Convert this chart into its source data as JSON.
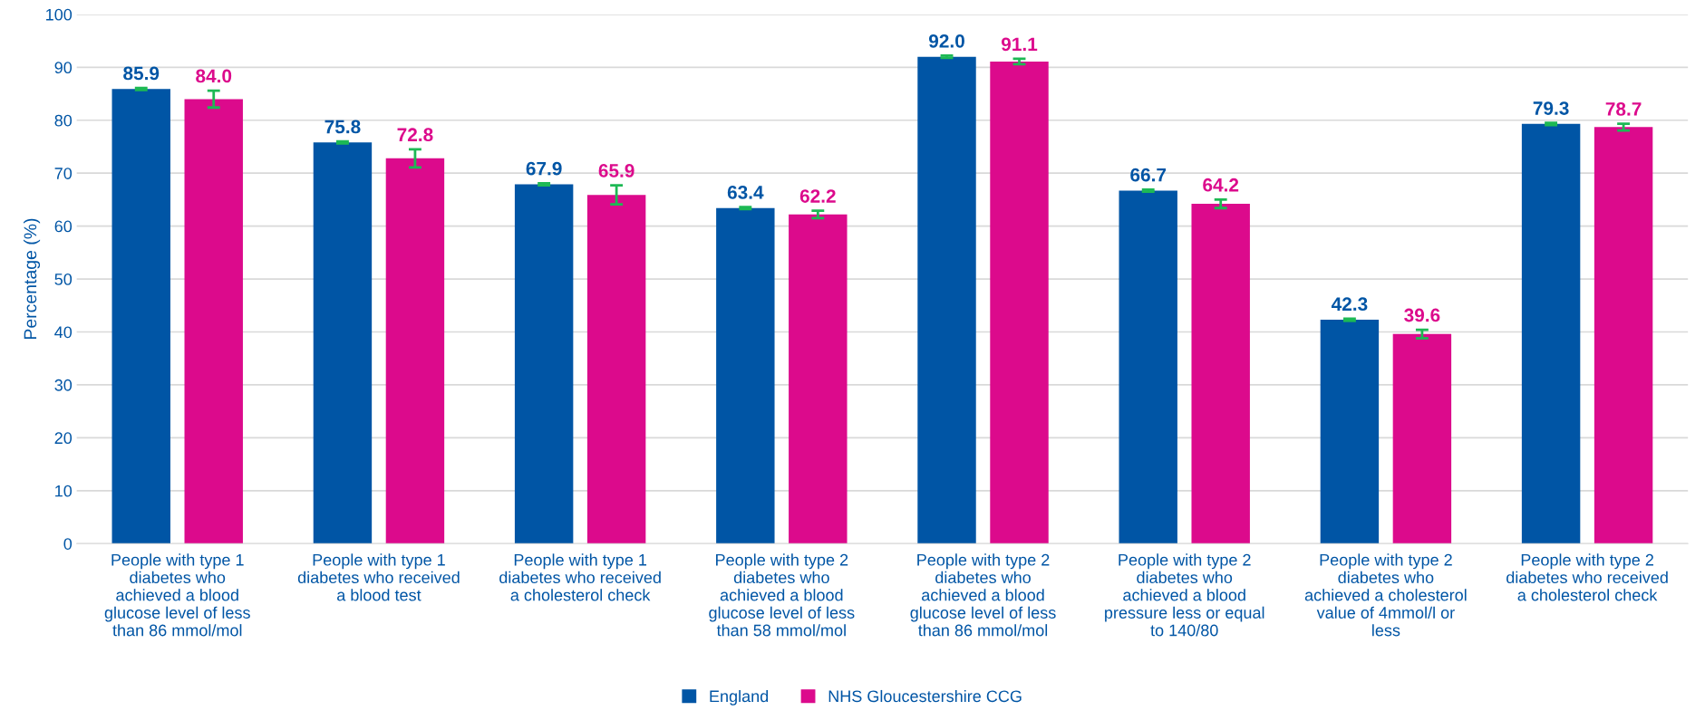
{
  "chart_data": {
    "type": "bar",
    "ylabel": "Percentage (%)",
    "categories": [
      "People with type 1\ndiabetes who\nachieved a blood\nglucose level of less\nthan 86 mmol/mol",
      "People with type 1\ndiabetes who received\na blood test",
      "People with type 1\ndiabetes who received\na cholesterol check",
      "People with type 2\ndiabetes who\nachieved a blood\nglucose level of less\nthan 58 mmol/mol",
      "People with type 2\ndiabetes who\nachieved a blood\nglucose level of less\nthan 86 mmol/mol",
      "People with type 2\ndiabetes who\nachieved a blood\npressure less or equal\nto 140/80",
      "People with type 2\ndiabetes who\nachieved a cholesterol\nvalue of 4mmol/l or\nless",
      "People with type 2\ndiabetes who received\na cholesterol check"
    ],
    "series": [
      {
        "name": "England",
        "color": "#0055a5",
        "values": [
          85.9,
          75.8,
          67.9,
          63.4,
          92.0,
          66.7,
          42.3,
          79.3
        ],
        "value_labels": [
          "85.9",
          "75.8",
          "67.9",
          "63.4",
          "92.0",
          "66.7",
          "42.3",
          "79.3"
        ],
        "errors": [
          0.2,
          0.2,
          0.2,
          0.2,
          0.2,
          0.2,
          0.2,
          0.2
        ]
      },
      {
        "name": "NHS Gloucestershire CCG",
        "color": "#dc0a8c",
        "values": [
          84.0,
          72.8,
          65.9,
          62.2,
          91.1,
          64.2,
          39.6,
          78.7
        ],
        "value_labels": [
          "84.0",
          "72.8",
          "65.9",
          "62.2",
          "91.1",
          "64.2",
          "39.6",
          "78.7"
        ],
        "errors": [
          1.6,
          1.7,
          1.8,
          0.7,
          0.5,
          0.8,
          0.8,
          0.65
        ]
      }
    ],
    "ylim": [
      0,
      100
    ],
    "yticks": [
      0,
      10,
      20,
      30,
      40,
      50,
      60,
      70,
      80,
      90,
      100
    ],
    "grid": "y",
    "legend": "bottom"
  }
}
